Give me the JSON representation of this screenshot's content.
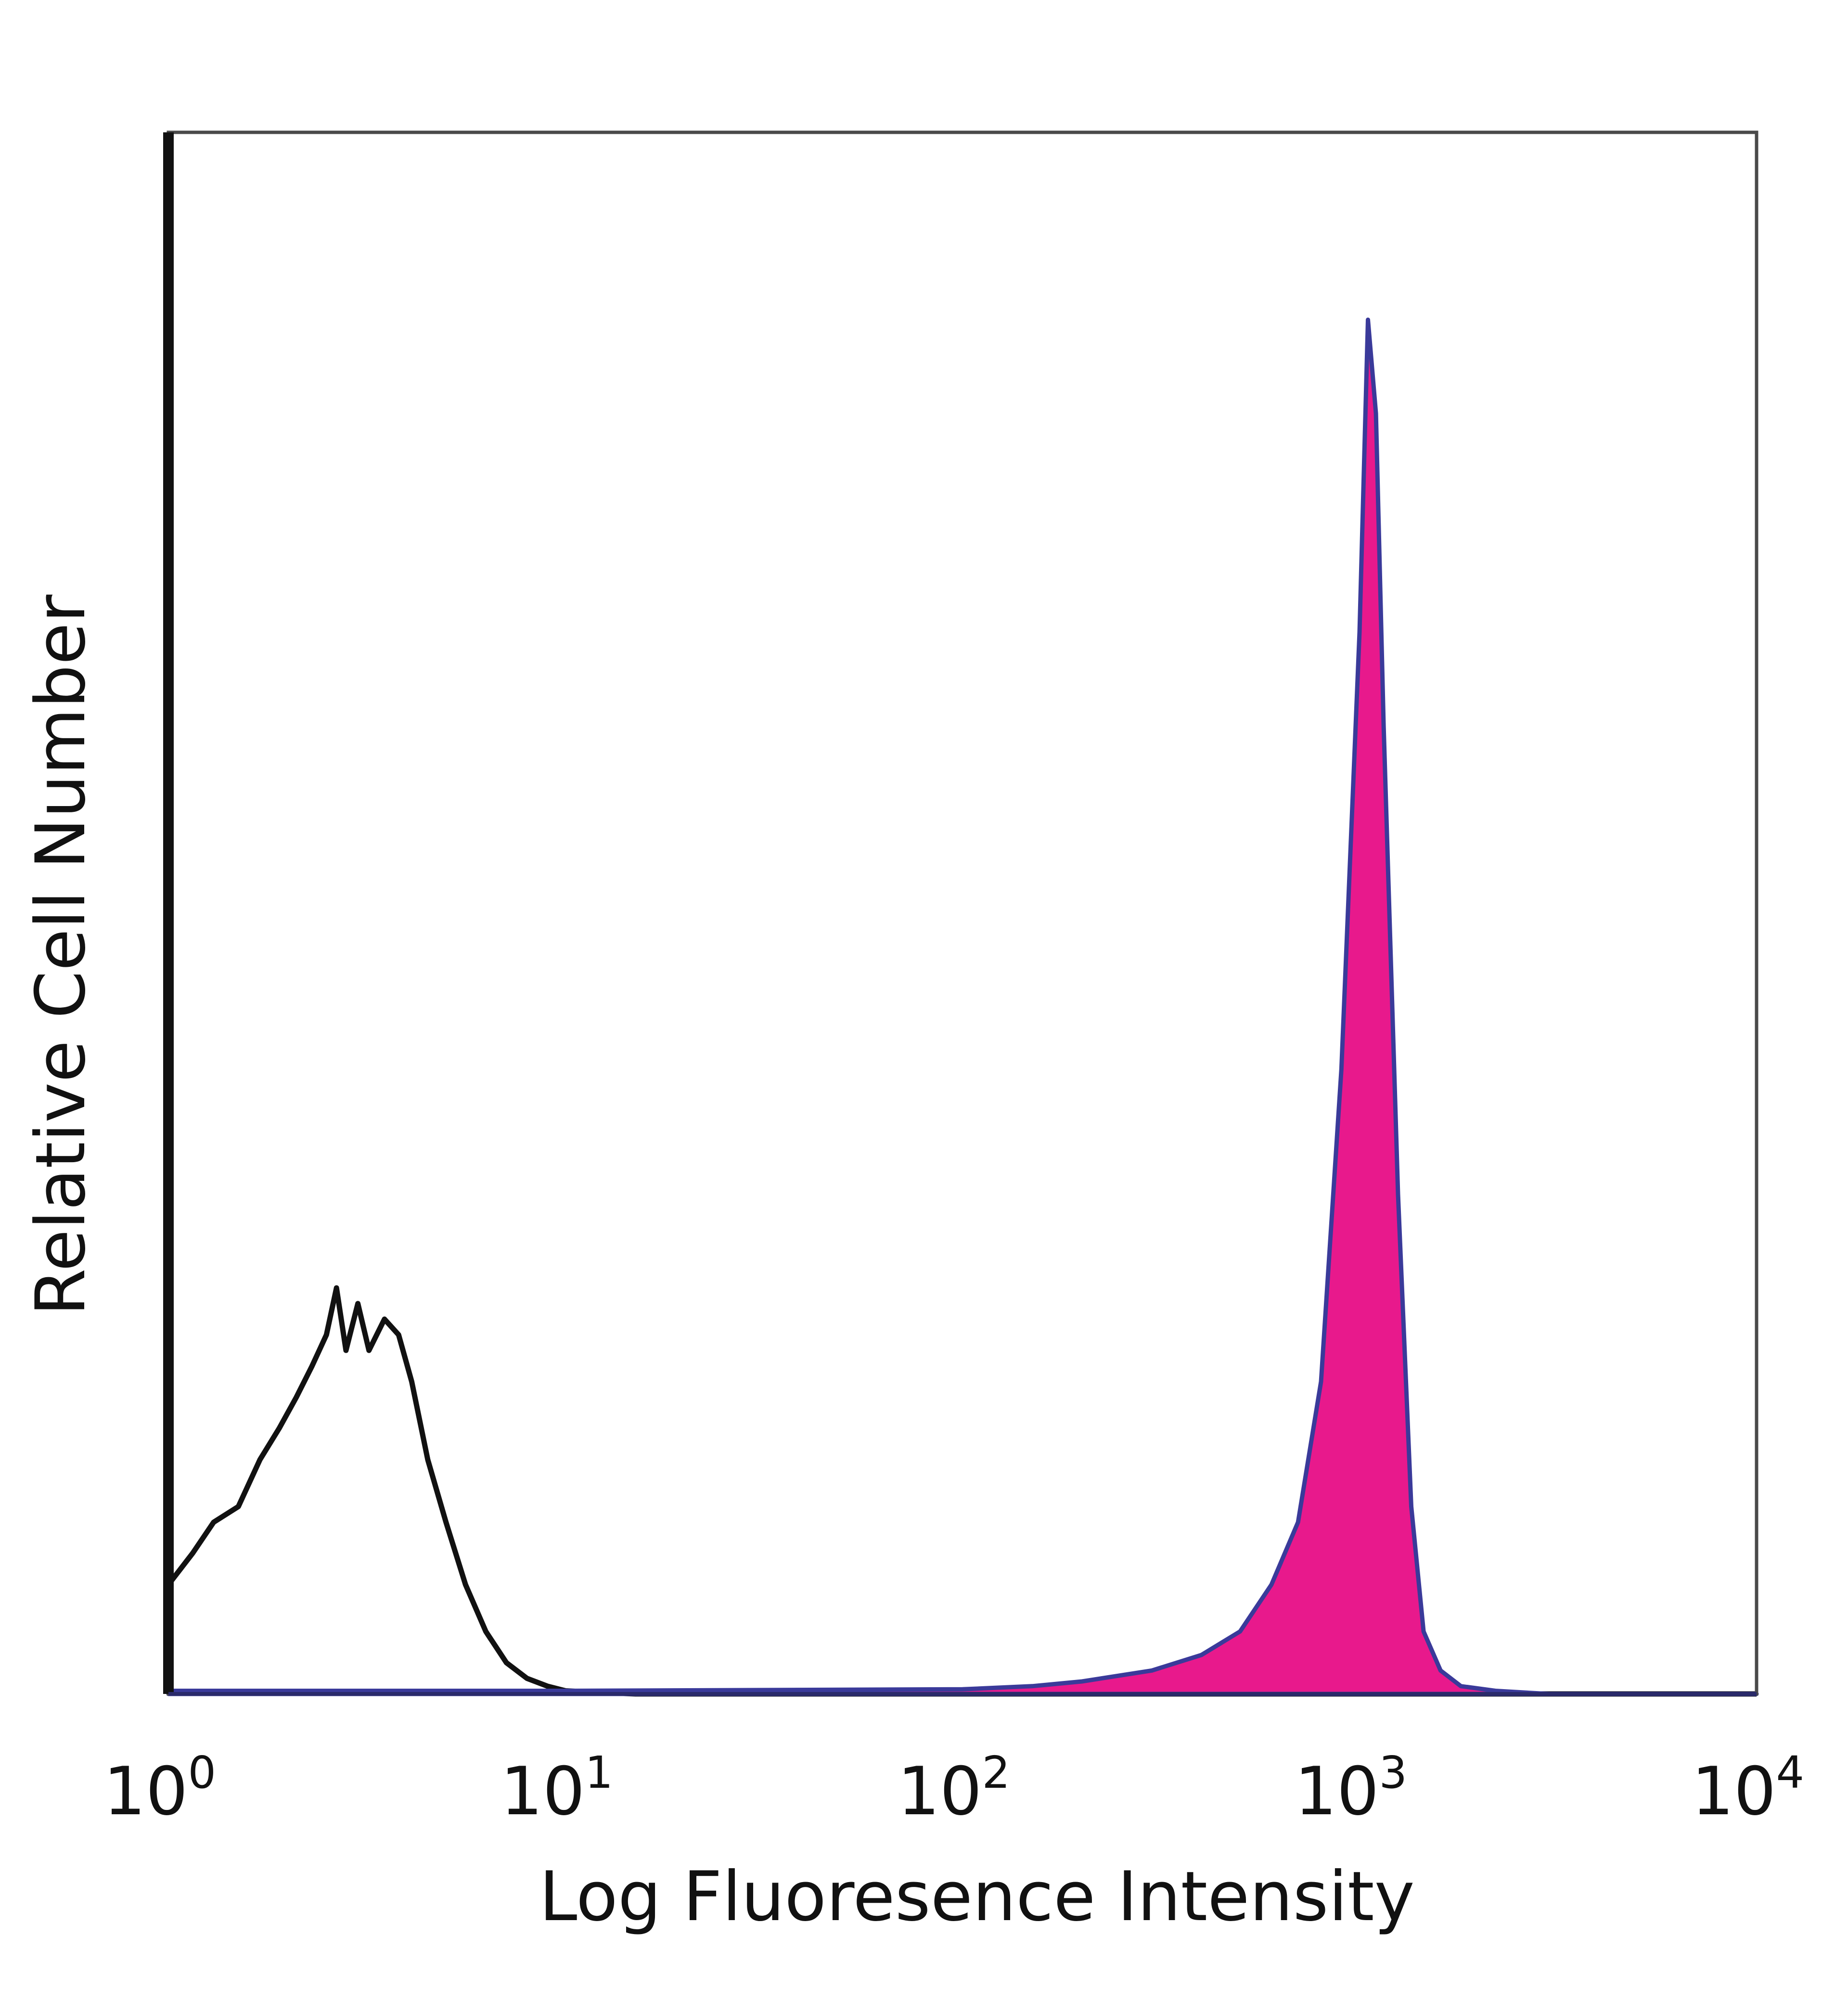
{
  "chart_data": {
    "type": "area",
    "title": "",
    "xlabel": "Log Fluoresence Intensity",
    "ylabel": "Relative Cell Number",
    "xscale": "log",
    "xlim": [
      1,
      10000
    ],
    "ylim": [
      0,
      100
    ],
    "grid": false,
    "legend": "none",
    "xticks": [
      {
        "base": "10",
        "exp": "0"
      },
      {
        "base": "10",
        "exp": "1"
      },
      {
        "base": "10",
        "exp": "2"
      },
      {
        "base": "10",
        "exp": "3"
      },
      {
        "base": "10",
        "exp": "4"
      }
    ],
    "series": [
      {
        "style": "outline",
        "color": "#111111",
        "x": [
          1.0,
          1.15,
          1.3,
          1.5,
          1.7,
          1.9,
          2.1,
          2.3,
          2.5,
          2.65,
          2.8,
          3.0,
          3.2,
          3.5,
          3.8,
          4.1,
          4.5,
          5.0,
          5.6,
          6.3,
          7.1,
          8.0,
          9.0,
          10.0,
          12.0,
          15.0,
          20.0,
          100.0,
          1000.0,
          10000.0
        ],
        "y": [
          7,
          9,
          11,
          12,
          15,
          17,
          19,
          21,
          23,
          26,
          22,
          25,
          22,
          24,
          23,
          20,
          15,
          11,
          7,
          4,
          2,
          1,
          0.5,
          0.2,
          0.1,
          0,
          0,
          0,
          0,
          0
        ]
      },
      {
        "style": "filled",
        "color": "#e8198c",
        "edge_color": "#3a3a9a",
        "x": [
          1.0,
          10.0,
          100.0,
          150.0,
          200.0,
          300.0,
          400.0,
          500.0,
          600.0,
          700.0,
          800.0,
          900.0,
          1000.0,
          1050.0,
          1100.0,
          1150.0,
          1250.0,
          1350.0,
          1450.0,
          1600.0,
          1800.0,
          2200.0,
          3000.0,
          10000.0
        ],
        "y": [
          0.2,
          0.2,
          0.3,
          0.5,
          0.8,
          1.5,
          2.5,
          4,
          7,
          11,
          20,
          40,
          68,
          88,
          82,
          62,
          32,
          12,
          4,
          1.5,
          0.5,
          0.2,
          0,
          0
        ]
      }
    ]
  }
}
